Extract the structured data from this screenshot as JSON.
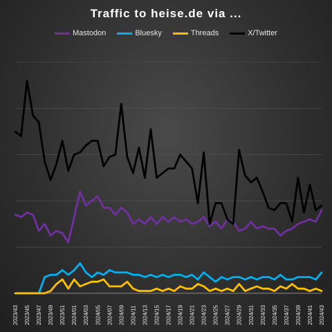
{
  "chart_data": {
    "type": "line",
    "title": "Traffic to heise.de via ...",
    "xlabel": "",
    "ylabel": "",
    "ylim": [
      0,
      100
    ],
    "grid": true,
    "legend_position": "top",
    "x": [
      "2023/43",
      "2023/44",
      "2023/45",
      "2023/46",
      "2023/47",
      "2023/48",
      "2023/49",
      "2023/50",
      "2023/51",
      "2023/52",
      "2024/01",
      "2024/02",
      "2024/03",
      "2024/04",
      "2024/05",
      "2024/06",
      "2024/07",
      "2024/08",
      "2024/09",
      "2024/10",
      "2024/11",
      "2024/12",
      "2024/13",
      "2024/14",
      "2024/15",
      "2024/16",
      "2024/17",
      "2024/18",
      "2024/19",
      "2024/20",
      "2024/21",
      "2024/22",
      "2024/23",
      "2024/24",
      "2024/25",
      "2024/26",
      "2024/27",
      "2024/28",
      "2024/29",
      "2024/30",
      "2024/31",
      "2024/32",
      "2024/33",
      "2024/34",
      "2024/35",
      "2024/36",
      "2024/37",
      "2024/38",
      "2024/39",
      "2024/40",
      "2024/41",
      "2024/42",
      "2024/43"
    ],
    "tick_labels": [
      "2023/43",
      "2023/45",
      "2023/47",
      "2023/49",
      "2023/51",
      "2024/01",
      "2024/03",
      "2024/05",
      "2024/07",
      "2024/09",
      "2024/11",
      "2024/13",
      "2024/15",
      "2024/17",
      "2024/19",
      "2024/21",
      "2024/23",
      "2024/25",
      "2024/27",
      "2024/29",
      "2024/31",
      "2024/33",
      "2024/35",
      "2024/37",
      "2024/39",
      "2024/41",
      "2024/43"
    ],
    "series": [
      {
        "name": "Mastodon",
        "color": "#7030A0",
        "values": [
          34,
          33,
          35,
          34,
          27,
          30,
          25,
          27,
          26,
          22,
          33,
          44,
          38,
          40,
          42,
          37,
          37,
          34,
          37,
          35,
          30,
          32,
          30,
          33,
          30,
          33,
          31,
          33,
          31,
          32,
          30,
          31,
          33,
          29,
          31,
          28,
          32,
          31,
          27,
          28,
          31,
          28,
          29,
          28,
          28,
          25,
          27,
          28,
          30,
          31,
          32,
          31,
          36
        ]
      },
      {
        "name": "Bluesky",
        "color": "#00B0F0",
        "values": [
          0,
          0,
          0,
          0,
          0,
          7,
          8,
          8,
          10,
          8,
          10,
          13,
          9,
          7,
          9,
          8,
          10,
          9,
          9,
          9,
          8,
          8,
          7,
          8,
          7,
          8,
          7,
          8,
          8,
          7,
          8,
          6,
          9,
          7,
          5,
          7,
          6,
          7,
          7,
          6,
          7,
          6,
          7,
          7,
          6,
          8,
          6,
          6,
          7,
          7,
          7,
          6,
          9
        ]
      },
      {
        "name": "Threads",
        "color": "#FFC000",
        "values": [
          0,
          0,
          0,
          0,
          0,
          0,
          1,
          4,
          6,
          2,
          6,
          3,
          4,
          5,
          5,
          6,
          3,
          3,
          3,
          5,
          2,
          1,
          1,
          1,
          2,
          1,
          2,
          1,
          3,
          2,
          2,
          4,
          3,
          1,
          2,
          1,
          2,
          1,
          4,
          1,
          2,
          3,
          2,
          2,
          1,
          3,
          2,
          4,
          2,
          2,
          1,
          2,
          1
        ]
      },
      {
        "name": "X/Twitter",
        "color": "#000000",
        "values": [
          70,
          68,
          92,
          77,
          74,
          57,
          49,
          56,
          66,
          53,
          60,
          61,
          64,
          66,
          66,
          55,
          59,
          60,
          82,
          59,
          52,
          63,
          50,
          71,
          50,
          52,
          54,
          54,
          60,
          57,
          54,
          39,
          61,
          30,
          39,
          39,
          32,
          30,
          62,
          51,
          48,
          50,
          44,
          37,
          36,
          39,
          39,
          31,
          50,
          35,
          47,
          36,
          38
        ]
      }
    ]
  }
}
